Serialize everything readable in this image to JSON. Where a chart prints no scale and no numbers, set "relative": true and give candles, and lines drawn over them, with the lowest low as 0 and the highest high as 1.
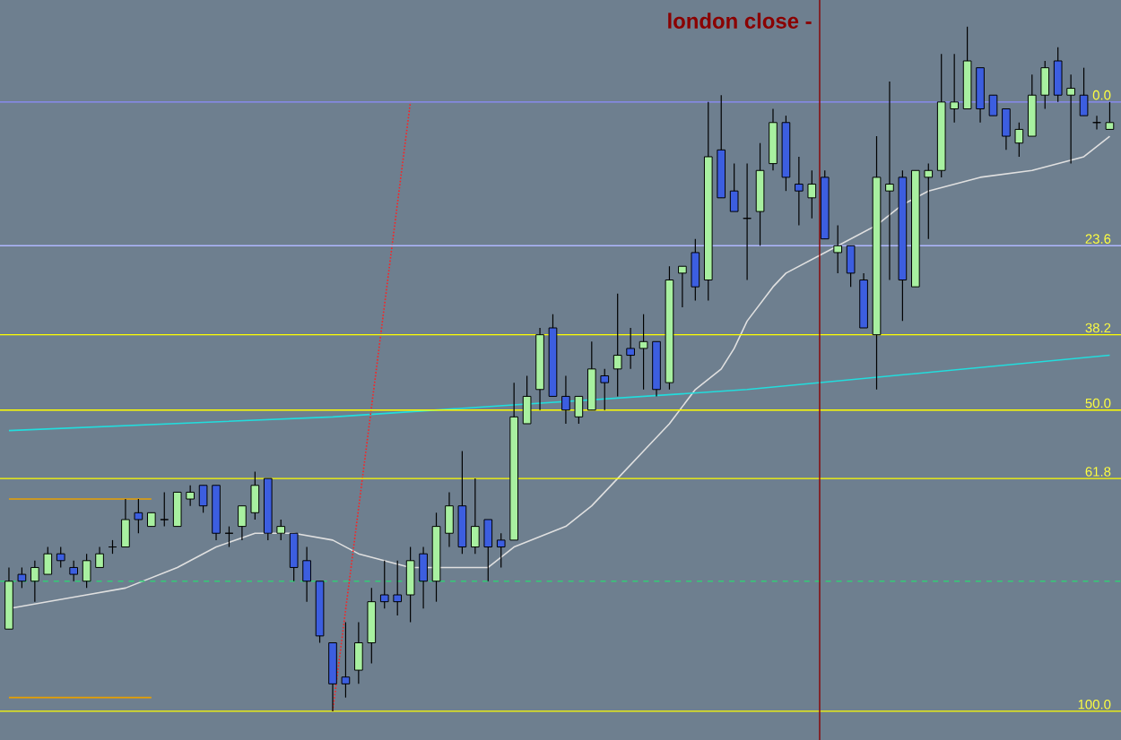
{
  "chart_data": {
    "type": "candlestick",
    "relative": true,
    "categories": [
      null,
      null,
      null,
      null,
      null,
      null,
      null,
      null,
      null,
      null,
      null,
      null,
      null,
      null,
      null,
      null,
      null,
      null,
      null,
      null,
      null,
      null,
      null,
      null,
      null,
      null,
      null,
      null,
      null,
      null,
      null,
      null,
      null,
      null,
      null,
      null,
      null,
      null,
      null,
      null,
      null,
      null,
      null,
      null,
      null,
      null,
      null,
      null,
      null,
      null,
      null,
      null,
      null,
      null,
      null,
      null,
      null,
      null,
      null,
      null,
      null,
      null,
      null,
      null,
      null,
      null,
      null,
      null,
      null,
      null,
      null,
      null,
      null,
      null,
      null,
      null,
      null,
      null,
      null,
      null,
      null,
      null,
      null,
      null,
      null,
      null
    ],
    "series": [
      {
        "type": "line",
        "color": "#e0e0e0",
        "values": [
          0.15,
          null,
          null,
          null,
          null,
          null,
          0.17,
          null,
          null,
          0.18,
          null,
          null,
          null,
          0.21,
          null,
          null,
          0.24,
          null,
          null,
          0.26,
          null,
          null,
          0.26,
          null,
          null,
          0.25,
          null,
          0.23,
          null,
          null,
          null,
          0.21,
          null,
          null,
          null,
          0.21,
          null,
          0.21,
          null,
          0.24,
          null,
          null,
          null,
          0.27,
          null,
          0.3,
          null,
          0.34,
          null,
          0.38,
          null,
          0.42,
          null,
          0.47,
          null,
          0.5,
          0.53,
          0.57,
          null,
          0.62,
          0.64,
          null,
          null,
          0.67,
          null,
          0.69,
          null,
          0.71,
          null,
          0.74,
          null,
          0.76,
          null,
          0.77,
          null,
          0.78,
          null,
          null,
          null,
          0.79,
          null,
          0.8,
          null,
          0.81,
          null,
          0.84
        ]
      },
      {
        "type": "line",
        "color": "#22dddd",
        "values": [
          0.41,
          null,
          null,
          null,
          null,
          null,
          null,
          null,
          null,
          null,
          null,
          null,
          null,
          null,
          null,
          null,
          null,
          null,
          null,
          null,
          null,
          null,
          null,
          null,
          null,
          0.43,
          null,
          null,
          null,
          null,
          null,
          null,
          null,
          null,
          null,
          null,
          null,
          null,
          null,
          null,
          null,
          null,
          null,
          null,
          null,
          null,
          null,
          null,
          null,
          null,
          null,
          null,
          null,
          null,
          null,
          null,
          null,
          0.47,
          null,
          null,
          null,
          null,
          null,
          null,
          null,
          null,
          null,
          null,
          null,
          null,
          null,
          null,
          null,
          null,
          null,
          null,
          null,
          null,
          null,
          null,
          null,
          null,
          null,
          null,
          null,
          0.52
        ]
      },
      {
        "type": "line",
        "color": "#e8a000",
        "values": [
          0.31,
          null,
          null,
          null,
          null,
          null,
          null,
          null,
          null,
          null,
          null,
          0.31,
          null,
          null,
          null,
          null,
          null,
          null,
          null,
          null,
          null,
          null,
          null,
          null,
          null,
          null,
          null,
          null,
          null,
          null,
          null,
          null,
          null,
          null,
          null,
          null,
          null,
          null,
          null,
          null,
          null,
          null,
          null,
          null,
          null,
          null,
          null,
          null,
          null,
          null,
          null,
          null,
          null,
          null,
          null,
          null,
          null,
          null,
          null,
          null,
          null,
          null,
          null,
          null,
          null,
          null,
          null,
          null,
          null,
          null,
          null,
          null,
          null,
          null,
          null,
          null,
          null,
          null,
          null,
          null,
          null,
          null,
          null,
          null,
          null,
          null
        ]
      },
      {
        "type": "line",
        "color": "#e8a000",
        "values": [
          0.02,
          null,
          null,
          null,
          null,
          null,
          null,
          null,
          null,
          null,
          null,
          0.02,
          null,
          null,
          null,
          null,
          null,
          null,
          null,
          null,
          null,
          null,
          null,
          null,
          null,
          null,
          null,
          null,
          null,
          null,
          null,
          null,
          null,
          null,
          null,
          null,
          null,
          null,
          null,
          null,
          null,
          null,
          null,
          null,
          null,
          null,
          null,
          null,
          null,
          null,
          null,
          null,
          null,
          null,
          null,
          null,
          null,
          null,
          null,
          null,
          null,
          null,
          null,
          null,
          null,
          null,
          null,
          null,
          null,
          null,
          null,
          null,
          null,
          null,
          null,
          null,
          null,
          null,
          null,
          null,
          null,
          null,
          null,
          null,
          null,
          null
        ]
      },
      {
        "type": "line",
        "color": "#ff2020",
        "line_style": "dotted",
        "values": [
          null,
          null,
          null,
          null,
          null,
          null,
          null,
          null,
          null,
          null,
          null,
          null,
          null,
          null,
          null,
          null,
          null,
          null,
          null,
          null,
          null,
          null,
          null,
          null,
          null,
          0.0,
          null,
          null,
          null,
          null,
          null,
          0.89,
          null,
          null,
          null,
          null,
          null,
          null,
          null,
          null,
          null,
          null,
          null,
          null,
          null,
          null,
          null,
          null,
          null,
          null,
          null,
          null,
          null,
          null,
          null,
          null,
          null,
          null,
          null,
          null,
          null,
          null,
          null,
          null,
          null,
          null,
          null,
          null,
          null,
          null,
          null,
          null,
          null,
          null,
          null,
          null,
          null,
          null,
          null,
          null,
          null,
          null,
          null,
          null,
          null,
          null
        ]
      },
      {
        "ohlc": [
          [
            0.12,
            0.21,
            0.12,
            0.19
          ],
          [
            0.2,
            0.21,
            0.18,
            0.19
          ],
          [
            0.19,
            0.22,
            0.16,
            0.21
          ],
          [
            0.2,
            0.24,
            0.2,
            0.23
          ],
          [
            0.23,
            0.24,
            0.21,
            0.22
          ],
          [
            0.21,
            0.22,
            0.19,
            0.2
          ],
          [
            0.19,
            0.23,
            0.18,
            0.22
          ],
          [
            0.21,
            0.24,
            0.21,
            0.23
          ],
          [
            0.24,
            0.25,
            0.23,
            0.24
          ],
          [
            0.24,
            0.31,
            0.24,
            0.28
          ],
          [
            0.29,
            0.31,
            0.26,
            0.28
          ],
          [
            0.27,
            0.29,
            0.27,
            0.29
          ],
          [
            0.28,
            0.32,
            0.27,
            0.28
          ],
          [
            0.27,
            0.32,
            0.27,
            0.32
          ],
          [
            0.31,
            0.33,
            0.3,
            0.32
          ],
          [
            0.33,
            0.33,
            0.29,
            0.3
          ],
          [
            0.33,
            0.33,
            0.25,
            0.26
          ],
          [
            0.26,
            0.27,
            0.24,
            0.26
          ],
          [
            0.27,
            0.3,
            0.25,
            0.3
          ],
          [
            0.29,
            0.35,
            0.28,
            0.33
          ],
          [
            0.34,
            0.34,
            0.25,
            0.26
          ],
          [
            0.26,
            0.28,
            0.25,
            0.27
          ],
          [
            0.26,
            0.26,
            0.19,
            0.21
          ],
          [
            0.22,
            0.24,
            0.16,
            0.19
          ],
          [
            0.19,
            0.19,
            0.1,
            0.11
          ],
          [
            0.1,
            0.1,
            0,
            0.04
          ],
          [
            0.05,
            0.13,
            0.02,
            0.04
          ],
          [
            0.06,
            0.13,
            0.04,
            0.1
          ],
          [
            0.1,
            0.18,
            0.07,
            0.16
          ],
          [
            0.17,
            0.22,
            0.15,
            0.16
          ],
          [
            0.17,
            0.22,
            0.14,
            0.16
          ],
          [
            0.17,
            0.24,
            0.13,
            0.22
          ],
          [
            0.23,
            0.24,
            0.15,
            0.19
          ],
          [
            0.19,
            0.29,
            0.16,
            0.27
          ],
          [
            0.26,
            0.32,
            0.24,
            0.3
          ],
          [
            0.3,
            0.38,
            0.23,
            0.24
          ],
          [
            0.24,
            0.34,
            0.23,
            0.27
          ],
          [
            0.28,
            0.28,
            0.19,
            0.24
          ],
          [
            0.25,
            0.26,
            0.21,
            0.24
          ],
          [
            0.25,
            0.48,
            0.25,
            0.43
          ],
          [
            0.42,
            0.49,
            0.42,
            0.46
          ],
          [
            0.47,
            0.56,
            0.44,
            0.55
          ],
          [
            0.56,
            0.58,
            0.46,
            0.46
          ],
          [
            0.46,
            0.49,
            0.42,
            0.44
          ],
          [
            0.43,
            0.46,
            0.42,
            0.46
          ],
          [
            0.44,
            0.54,
            0.44,
            0.5
          ],
          [
            0.49,
            0.5,
            0.44,
            0.48
          ],
          [
            0.5,
            0.61,
            0.46,
            0.52
          ],
          [
            0.53,
            0.56,
            0.5,
            0.52
          ],
          [
            0.53,
            0.58,
            0.47,
            0.54
          ],
          [
            0.54,
            0.54,
            0.46,
            0.47
          ],
          [
            0.48,
            0.65,
            0.47,
            0.63
          ],
          [
            0.64,
            0.65,
            0.59,
            0.65
          ],
          [
            0.67,
            0.69,
            0.6,
            0.62
          ],
          [
            0.63,
            0.89,
            0.6,
            0.81
          ],
          [
            0.82,
            0.9,
            0.75,
            0.75
          ],
          [
            0.76,
            0.8,
            0.73,
            0.73
          ],
          [
            0.72,
            0.8,
            0.63,
            0.72
          ],
          [
            0.73,
            0.83,
            0.68,
            0.79
          ],
          [
            0.8,
            0.88,
            0.79,
            0.86
          ],
          [
            0.86,
            0.87,
            0.76,
            0.78
          ],
          [
            0.77,
            0.81,
            0.71,
            0.76
          ],
          [
            0.75,
            0.79,
            0.72,
            0.77
          ],
          [
            0.78,
            0.79,
            0.69,
            0.69
          ],
          [
            0.67,
            0.71,
            0.64,
            0.68
          ],
          [
            0.68,
            0.68,
            0.62,
            0.64
          ],
          [
            0.63,
            0.64,
            0.56,
            0.56
          ],
          [
            0.55,
            0.84,
            0.47,
            0.78
          ],
          [
            0.76,
            0.92,
            0.63,
            0.77
          ],
          [
            0.78,
            0.79,
            0.57,
            0.63
          ],
          [
            0.62,
            0.79,
            0.62,
            0.79
          ],
          [
            0.78,
            0.8,
            0.69,
            0.79
          ],
          [
            0.79,
            0.96,
            0.78,
            0.89
          ],
          [
            0.88,
            0.96,
            0.86,
            0.89
          ],
          [
            0.88,
            1,
            0.88,
            0.95
          ],
          [
            0.94,
            0.94,
            0.86,
            0.88
          ],
          [
            0.9,
            0.9,
            0.87,
            0.87
          ],
          [
            0.88,
            0.88,
            0.82,
            0.84
          ],
          [
            0.83,
            0.86,
            0.81,
            0.85
          ],
          [
            0.84,
            0.93,
            0.84,
            0.9
          ],
          [
            0.9,
            0.95,
            0.88,
            0.94
          ],
          [
            0.95,
            0.97,
            0.89,
            0.9
          ],
          [
            0.9,
            0.93,
            0.8,
            0.91
          ],
          [
            0.9,
            0.94,
            0.87,
            0.87
          ],
          [
            0.86,
            0.87,
            0.85,
            0.86
          ],
          [
            0.85,
            0.89,
            0.85,
            0.86
          ]
        ],
        "colors": [
          "#a8f0a0",
          "#3c5ee0",
          "#a8f0a0",
          "#a8f0a0",
          "#3c5ee0",
          "#3c5ee0",
          "#a8f0a0",
          "#a8f0a0",
          "#000000",
          "#a8f0a0",
          "#3c5ee0",
          "#a8f0a0",
          "#000000",
          "#a8f0a0",
          "#a8f0a0",
          "#3c5ee0",
          "#3c5ee0",
          "#000000",
          "#a8f0a0",
          "#a8f0a0",
          "#3c5ee0",
          "#a8f0a0",
          "#3c5ee0",
          "#3c5ee0",
          "#3c5ee0",
          "#3c5ee0",
          "#3c5ee0",
          "#a8f0a0",
          "#a8f0a0",
          "#3c5ee0",
          "#3c5ee0",
          "#a8f0a0",
          "#3c5ee0",
          "#a8f0a0",
          "#a8f0a0",
          "#3c5ee0",
          "#a8f0a0",
          "#3c5ee0",
          "#3c5ee0",
          "#a8f0a0",
          "#a8f0a0",
          "#a8f0a0",
          "#3c5ee0",
          "#3c5ee0",
          "#a8f0a0",
          "#a8f0a0",
          "#3c5ee0",
          "#a8f0a0",
          "#3c5ee0",
          "#a8f0a0",
          "#3c5ee0",
          "#a8f0a0",
          "#a8f0a0",
          "#3c5ee0",
          "#a8f0a0",
          "#3c5ee0",
          "#3c5ee0",
          "#000000",
          "#a8f0a0",
          "#a8f0a0",
          "#3c5ee0",
          "#3c5ee0",
          "#a8f0a0",
          "#3c5ee0",
          "#a8f0a0",
          "#3c5ee0",
          "#3c5ee0",
          "#a8f0a0",
          "#a8f0a0",
          "#3c5ee0",
          "#a8f0a0",
          "#a8f0a0",
          "#a8f0a0",
          "#a8f0a0",
          "#a8f0a0",
          "#3c5ee0",
          "#3c5ee0",
          "#3c5ee0",
          "#a8f0a0",
          "#a8f0a0",
          "#a8f0a0",
          "#3c5ee0",
          "#a8f0a0",
          "#3c5ee0",
          "#000000",
          "#a8f0a0"
        ]
      }
    ],
    "ref_lines": [
      {
        "axis": "y",
        "value": 0.89,
        "color": "#8c8cff"
      },
      {
        "axis": "y",
        "value": 0.68,
        "color": "#b0b8ff"
      },
      {
        "axis": "y",
        "value": 0.55,
        "color": "#ffff00"
      },
      {
        "axis": "y",
        "value": 0.44,
        "color": "#ffff00"
      },
      {
        "axis": "y",
        "value": 0.34,
        "color": "#ffff00"
      },
      {
        "axis": "y",
        "value": 0.0,
        "color": "#ffff00"
      },
      {
        "axis": "y",
        "value": 0.19,
        "color": "#33cc77",
        "line_style": "dashed"
      }
    ],
    "annotations": [
      {
        "text": "0.0",
        "y": 0.89
      },
      {
        "text": "23.6",
        "y": 0.68
      },
      {
        "text": "38.2",
        "y": 0.55
      },
      {
        "text": "50.0",
        "y": 0.44
      },
      {
        "text": "61.8",
        "y": 0.34
      },
      {
        "text": "100.0",
        "y": 0.0
      },
      "london close -"
    ]
  }
}
